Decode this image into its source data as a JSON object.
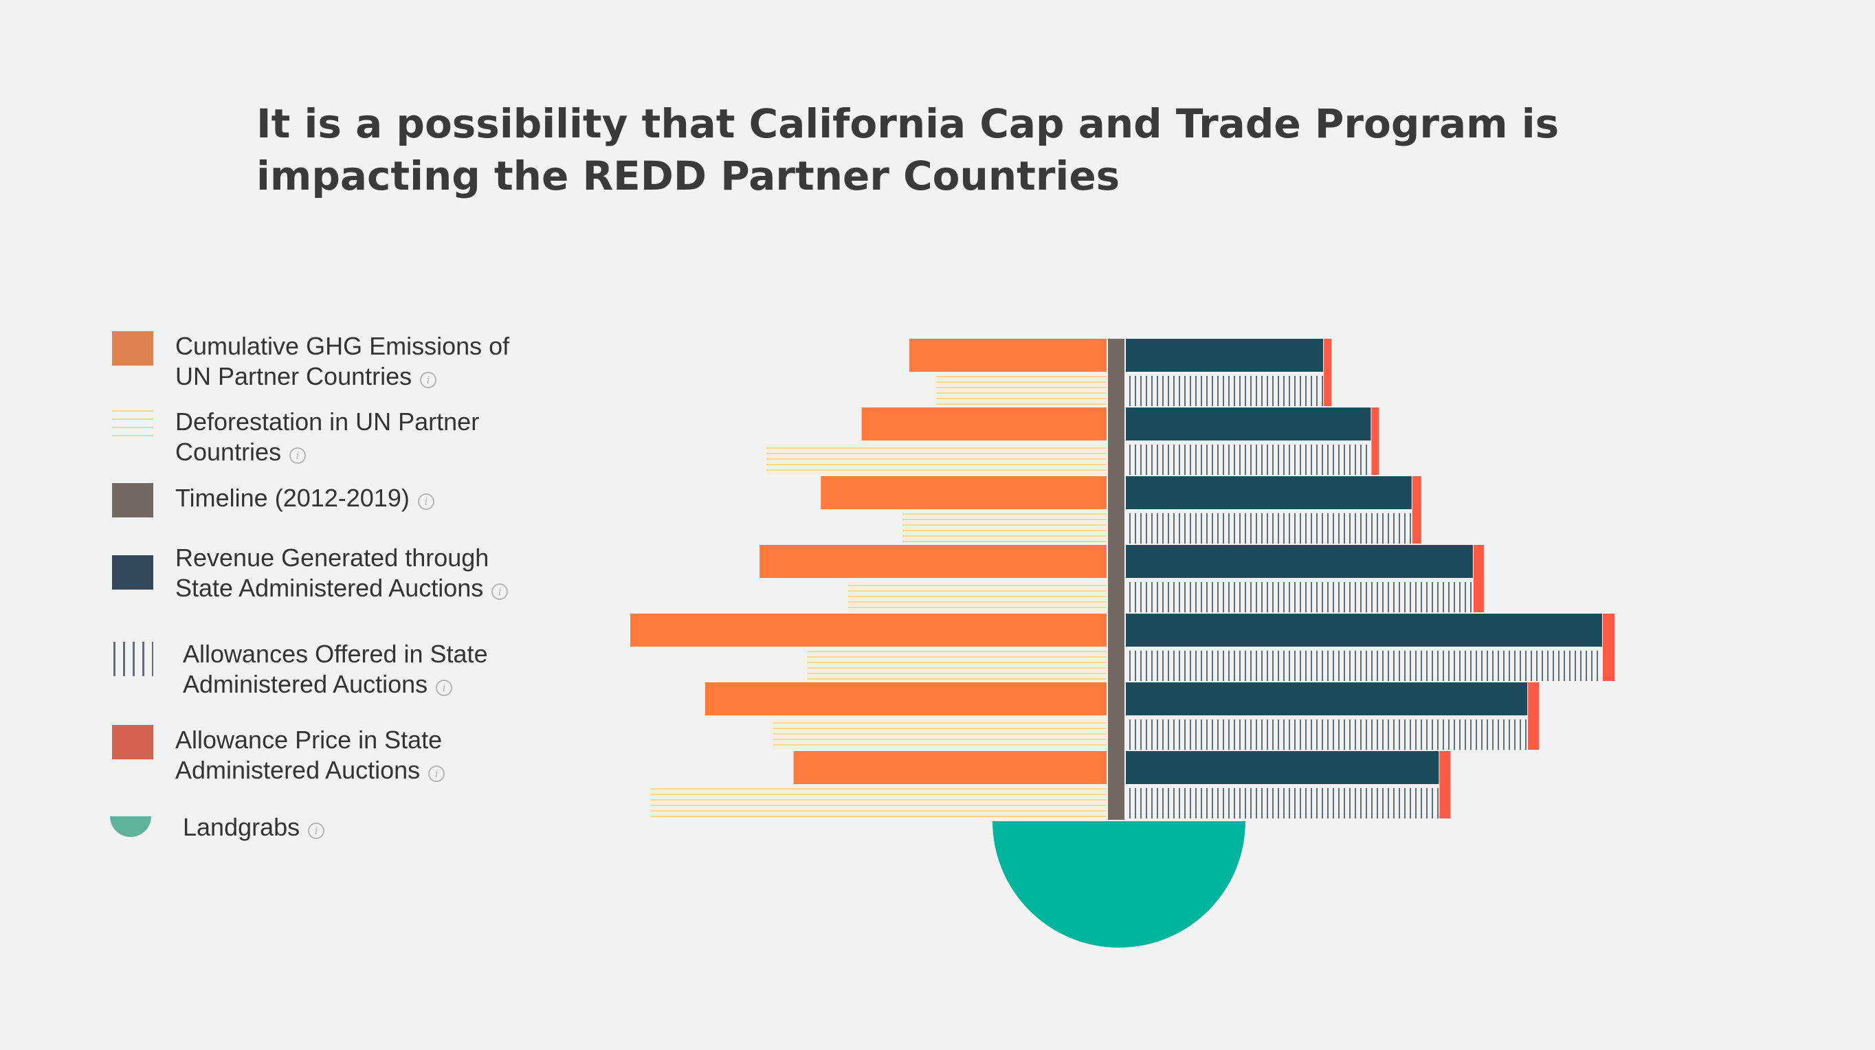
{
  "title": "It is a possibility that California Cap and Trade Program is impacting the REDD Partner Countries",
  "legend": [
    {
      "label_lines": [
        "Cumulative GHG Emissions of",
        "UN Partner Countries"
      ],
      "icon": "orange-square",
      "color": "#e0824f"
    },
    {
      "label_lines": [
        "Deforestation in UN Partner",
        "Countries"
      ],
      "icon": "horizontal-lines",
      "color": "#f2d98c"
    },
    {
      "label_lines": [
        "Timeline (2012-2019)"
      ],
      "icon": "brown-square",
      "color": "#756860"
    },
    {
      "label_lines": [
        "Revenue Generated through",
        "State Administered Auctions"
      ],
      "icon": "navy-square",
      "color": "#33485a"
    },
    {
      "label_lines": [
        "Allowances Offered in State",
        "Administered Auctions"
      ],
      "icon": "vertical-lines",
      "color": "#5d6f7c"
    },
    {
      "label_lines": [
        "Allowance Price in State",
        "Administered Auctions"
      ],
      "icon": "red-square",
      "color": "#d4614f"
    },
    {
      "label_lines": [
        "Landgrabs"
      ],
      "icon": "half-circle",
      "color": "#5fb39c"
    }
  ],
  "info_icon": "info-icon",
  "chart_data": {
    "type": "bar",
    "orientation": "diverging-horizontal",
    "series": [
      {
        "name": "Cumulative GHG Emissions of UN Partner Countries",
        "side": "left",
        "color": "#ff7a3d",
        "values": [
          29,
          36,
          42,
          51,
          70,
          59,
          46
        ]
      },
      {
        "name": "Deforestation in UN Partner Countries",
        "side": "left",
        "color": "#f2d98c",
        "pattern": "horizontal-lines",
        "values": [
          25,
          50,
          30,
          38,
          44,
          49,
          67
        ]
      },
      {
        "name": "Revenue Generated through State Administered Auctions",
        "side": "right",
        "color": "#1c4b5b",
        "values": [
          29,
          36,
          42,
          51,
          70,
          59,
          46
        ]
      },
      {
        "name": "Allowances Offered in State Administered Auctions",
        "side": "right",
        "color": "#5d6f7c",
        "pattern": "vertical-lines",
        "values": [
          29,
          36,
          42,
          51,
          70,
          59,
          46
        ]
      },
      {
        "name": "Allowance Price in State Administered Auctions",
        "side": "right",
        "color": "#ff5a44",
        "values": [
          1.0,
          1.0,
          1.2,
          1.4,
          1.6,
          1.5,
          1.5
        ]
      }
    ],
    "timeline": {
      "name": "Timeline (2012-2019)",
      "color": "#756860"
    },
    "landgrabs": {
      "name": "Landgrabs",
      "color": "#00b59e",
      "value": 1
    }
  }
}
